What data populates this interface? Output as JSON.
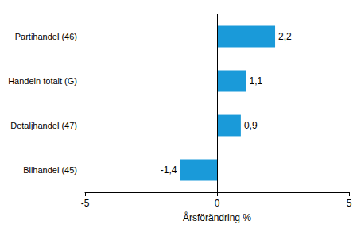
{
  "chart_data": {
    "type": "bar",
    "orientation": "horizontal",
    "categories": [
      "Partihandel (46)",
      "Handeln totalt (G)",
      "Detaljhandel (47)",
      "Bilhandel (45)"
    ],
    "values": [
      2.2,
      1.1,
      0.9,
      -1.4
    ],
    "value_labels": [
      "2,2",
      "1,1",
      "0,9",
      "-1,4"
    ],
    "data_labels": true,
    "color": "#1a9ad9",
    "xlabel": "Årsförändring %",
    "xlim": [
      -5,
      5
    ],
    "xticks": [
      -5,
      0,
      5
    ],
    "grid": false
  }
}
